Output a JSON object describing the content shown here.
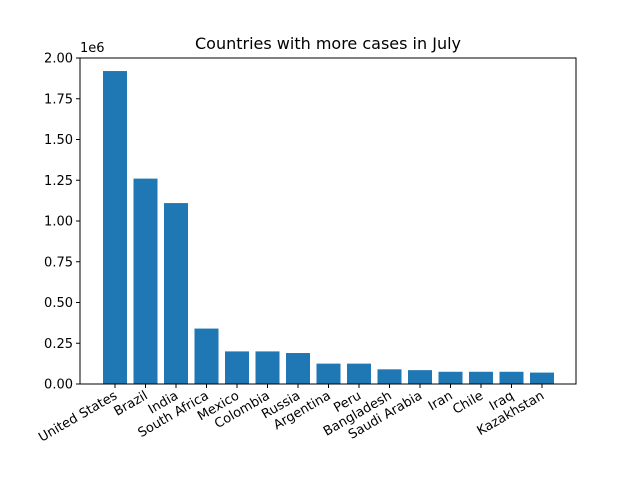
{
  "chart_data": {
    "type": "bar",
    "title": "Countries with more cases in July",
    "xlabel": "",
    "ylabel": "",
    "y_offset_label": "1e6",
    "ylim": [
      0,
      2.0
    ],
    "yticks": [
      0.0,
      0.25,
      0.5,
      0.75,
      1.0,
      1.25,
      1.5,
      1.75,
      2.0
    ],
    "ytick_labels": [
      "0.00",
      "0.25",
      "0.50",
      "0.75",
      "1.00",
      "1.25",
      "1.50",
      "1.75",
      "2.00"
    ],
    "grid": false,
    "bar_color": "#1f77b4",
    "categories": [
      "United States",
      "Brazil",
      "India",
      "South Africa",
      "Mexico",
      "Colombia",
      "Russia",
      "Argentina",
      "Peru",
      "Bangladesh",
      "Saudi Arabia",
      "Iran",
      "Chile",
      "Iraq",
      "Kazakhstan"
    ],
    "values": [
      1.92,
      1.26,
      1.11,
      0.34,
      0.2,
      0.2,
      0.19,
      0.125,
      0.125,
      0.09,
      0.085,
      0.075,
      0.075,
      0.075,
      0.07
    ]
  }
}
